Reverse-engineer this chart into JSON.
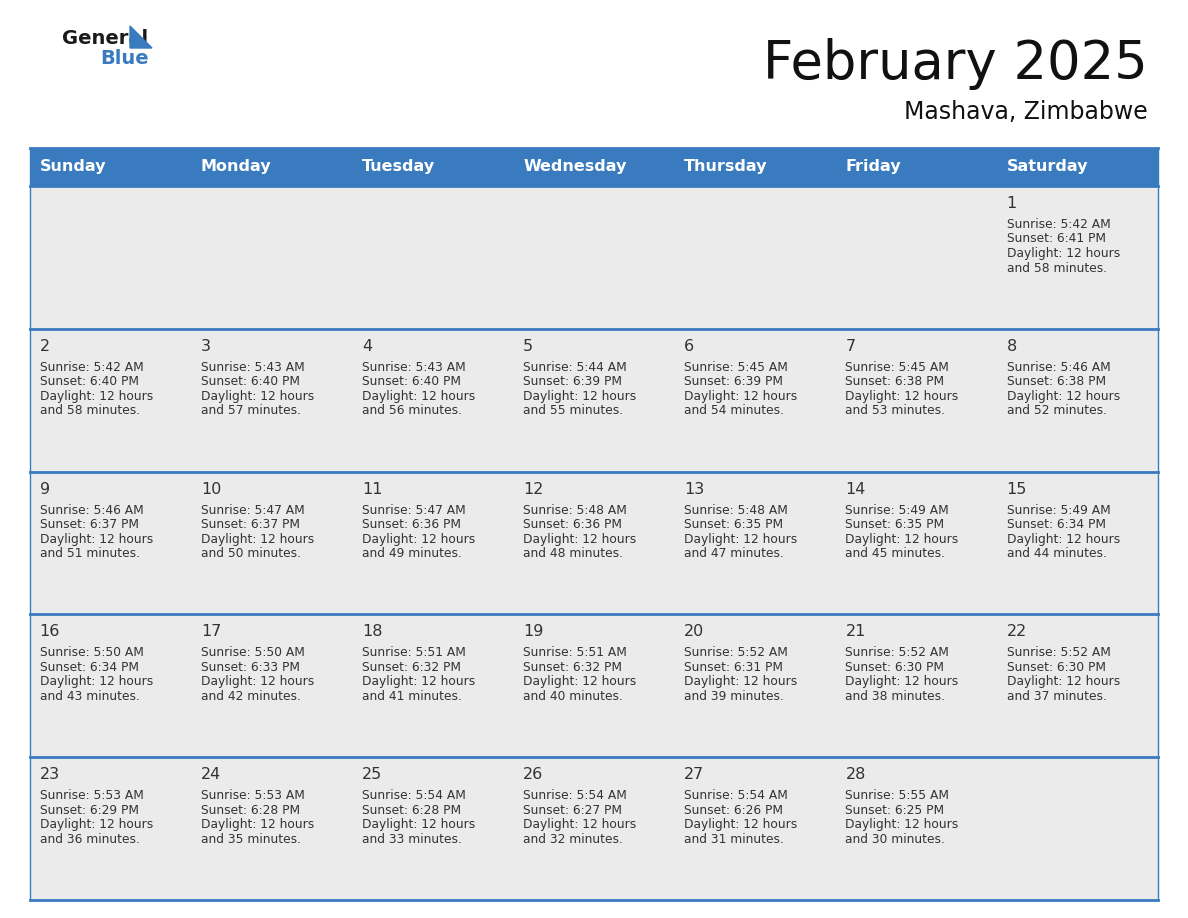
{
  "title": "February 2025",
  "subtitle": "Mashava, Zimbabwe",
  "header_color": "#3a7bbf",
  "header_text_color": "#ffffff",
  "bg_color": "#ffffff",
  "cell_bg": "#ebebeb",
  "border_color": "#3a7bbf",
  "day_number_color": "#333333",
  "text_color": "#333333",
  "day_headers": [
    "Sunday",
    "Monday",
    "Tuesday",
    "Wednesday",
    "Thursday",
    "Friday",
    "Saturday"
  ],
  "days": [
    {
      "day": 1,
      "col": 6,
      "row": 0,
      "sunrise": "5:42 AM",
      "sunset": "6:41 PM",
      "daylight_extra": "58 minutes."
    },
    {
      "day": 2,
      "col": 0,
      "row": 1,
      "sunrise": "5:42 AM",
      "sunset": "6:40 PM",
      "daylight_extra": "58 minutes."
    },
    {
      "day": 3,
      "col": 1,
      "row": 1,
      "sunrise": "5:43 AM",
      "sunset": "6:40 PM",
      "daylight_extra": "57 minutes."
    },
    {
      "day": 4,
      "col": 2,
      "row": 1,
      "sunrise": "5:43 AM",
      "sunset": "6:40 PM",
      "daylight_extra": "56 minutes."
    },
    {
      "day": 5,
      "col": 3,
      "row": 1,
      "sunrise": "5:44 AM",
      "sunset": "6:39 PM",
      "daylight_extra": "55 minutes."
    },
    {
      "day": 6,
      "col": 4,
      "row": 1,
      "sunrise": "5:45 AM",
      "sunset": "6:39 PM",
      "daylight_extra": "54 minutes."
    },
    {
      "day": 7,
      "col": 5,
      "row": 1,
      "sunrise": "5:45 AM",
      "sunset": "6:38 PM",
      "daylight_extra": "53 minutes."
    },
    {
      "day": 8,
      "col": 6,
      "row": 1,
      "sunrise": "5:46 AM",
      "sunset": "6:38 PM",
      "daylight_extra": "52 minutes."
    },
    {
      "day": 9,
      "col": 0,
      "row": 2,
      "sunrise": "5:46 AM",
      "sunset": "6:37 PM",
      "daylight_extra": "51 minutes."
    },
    {
      "day": 10,
      "col": 1,
      "row": 2,
      "sunrise": "5:47 AM",
      "sunset": "6:37 PM",
      "daylight_extra": "50 minutes."
    },
    {
      "day": 11,
      "col": 2,
      "row": 2,
      "sunrise": "5:47 AM",
      "sunset": "6:36 PM",
      "daylight_extra": "49 minutes."
    },
    {
      "day": 12,
      "col": 3,
      "row": 2,
      "sunrise": "5:48 AM",
      "sunset": "6:36 PM",
      "daylight_extra": "48 minutes."
    },
    {
      "day": 13,
      "col": 4,
      "row": 2,
      "sunrise": "5:48 AM",
      "sunset": "6:35 PM",
      "daylight_extra": "47 minutes."
    },
    {
      "day": 14,
      "col": 5,
      "row": 2,
      "sunrise": "5:49 AM",
      "sunset": "6:35 PM",
      "daylight_extra": "45 minutes."
    },
    {
      "day": 15,
      "col": 6,
      "row": 2,
      "sunrise": "5:49 AM",
      "sunset": "6:34 PM",
      "daylight_extra": "44 minutes."
    },
    {
      "day": 16,
      "col": 0,
      "row": 3,
      "sunrise": "5:50 AM",
      "sunset": "6:34 PM",
      "daylight_extra": "43 minutes."
    },
    {
      "day": 17,
      "col": 1,
      "row": 3,
      "sunrise": "5:50 AM",
      "sunset": "6:33 PM",
      "daylight_extra": "42 minutes."
    },
    {
      "day": 18,
      "col": 2,
      "row": 3,
      "sunrise": "5:51 AM",
      "sunset": "6:32 PM",
      "daylight_extra": "41 minutes."
    },
    {
      "day": 19,
      "col": 3,
      "row": 3,
      "sunrise": "5:51 AM",
      "sunset": "6:32 PM",
      "daylight_extra": "40 minutes."
    },
    {
      "day": 20,
      "col": 4,
      "row": 3,
      "sunrise": "5:52 AM",
      "sunset": "6:31 PM",
      "daylight_extra": "39 minutes."
    },
    {
      "day": 21,
      "col": 5,
      "row": 3,
      "sunrise": "5:52 AM",
      "sunset": "6:30 PM",
      "daylight_extra": "38 minutes."
    },
    {
      "day": 22,
      "col": 6,
      "row": 3,
      "sunrise": "5:52 AM",
      "sunset": "6:30 PM",
      "daylight_extra": "37 minutes."
    },
    {
      "day": 23,
      "col": 0,
      "row": 4,
      "sunrise": "5:53 AM",
      "sunset": "6:29 PM",
      "daylight_extra": "36 minutes."
    },
    {
      "day": 24,
      "col": 1,
      "row": 4,
      "sunrise": "5:53 AM",
      "sunset": "6:28 PM",
      "daylight_extra": "35 minutes."
    },
    {
      "day": 25,
      "col": 2,
      "row": 4,
      "sunrise": "5:54 AM",
      "sunset": "6:28 PM",
      "daylight_extra": "33 minutes."
    },
    {
      "day": 26,
      "col": 3,
      "row": 4,
      "sunrise": "5:54 AM",
      "sunset": "6:27 PM",
      "daylight_extra": "32 minutes."
    },
    {
      "day": 27,
      "col": 4,
      "row": 4,
      "sunrise": "5:54 AM",
      "sunset": "6:26 PM",
      "daylight_extra": "31 minutes."
    },
    {
      "day": 28,
      "col": 5,
      "row": 4,
      "sunrise": "5:55 AM",
      "sunset": "6:25 PM",
      "daylight_extra": "30 minutes."
    }
  ],
  "num_rows": 5,
  "num_cols": 7
}
